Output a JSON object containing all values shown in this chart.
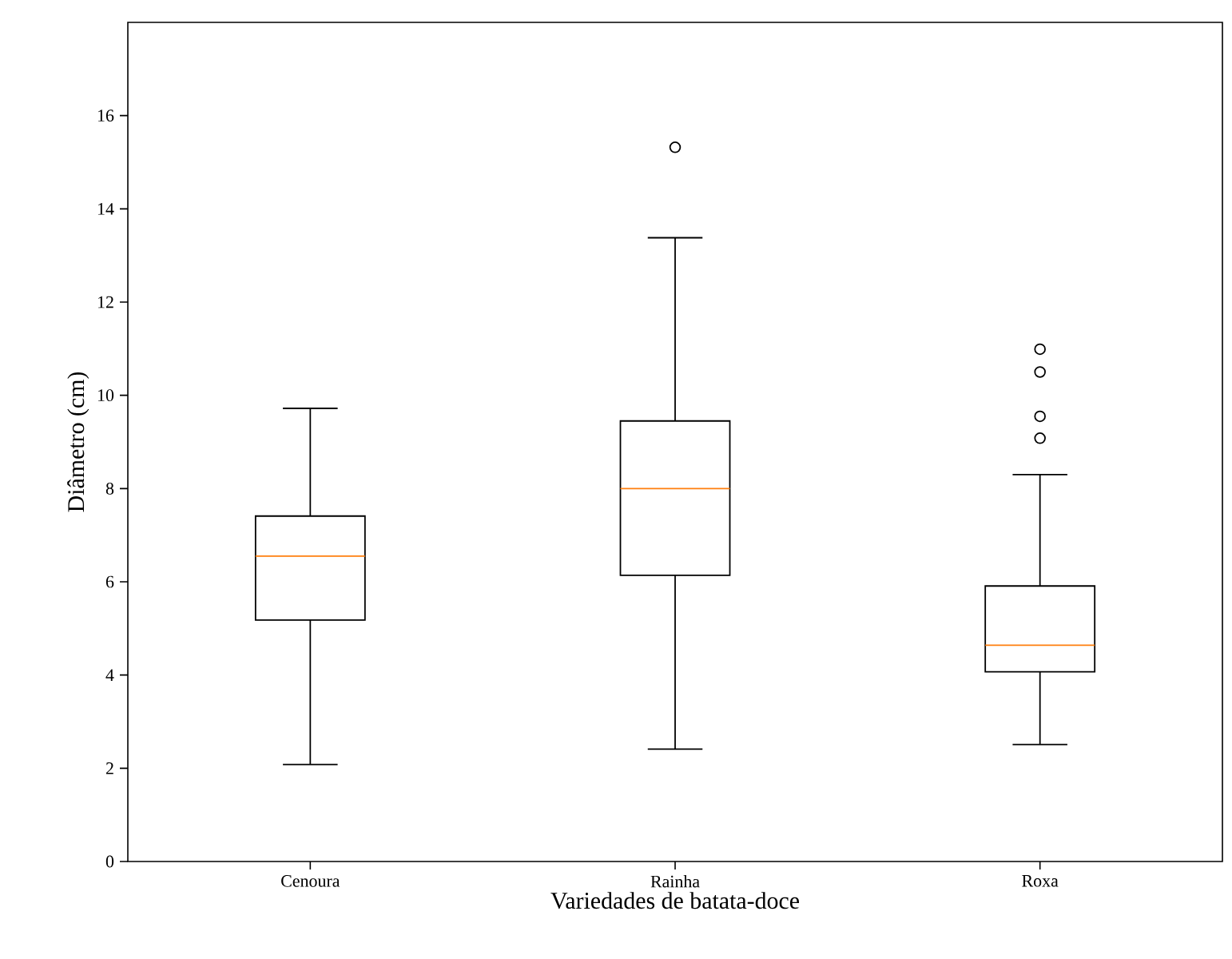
{
  "chart_data": {
    "type": "box",
    "xlabel": "Variedades de batata-doce",
    "ylabel": "Diâmetro (cm)",
    "categories": [
      "Cenoura",
      "Rainha",
      "Roxa"
    ],
    "boxes": [
      {
        "low": 2.08,
        "q1": 5.18,
        "median": 6.55,
        "q3": 7.41,
        "high": 9.72
      },
      {
        "low": 2.41,
        "q1": 6.14,
        "median": 8.0,
        "q3": 9.45,
        "high": 13.38,
        "outliers": [
          15.32
        ]
      },
      {
        "low": 2.51,
        "q1": 4.07,
        "median": 4.64,
        "q3": 5.91,
        "high": 8.3,
        "outliers": [
          9.08,
          9.55,
          10.5,
          10.99
        ]
      }
    ],
    "color": "#000000",
    "marker": "circle",
    "ylim": [
      0,
      18
    ],
    "yticks": [
      0,
      2,
      4,
      6,
      8,
      10,
      12,
      14,
      16
    ]
  }
}
